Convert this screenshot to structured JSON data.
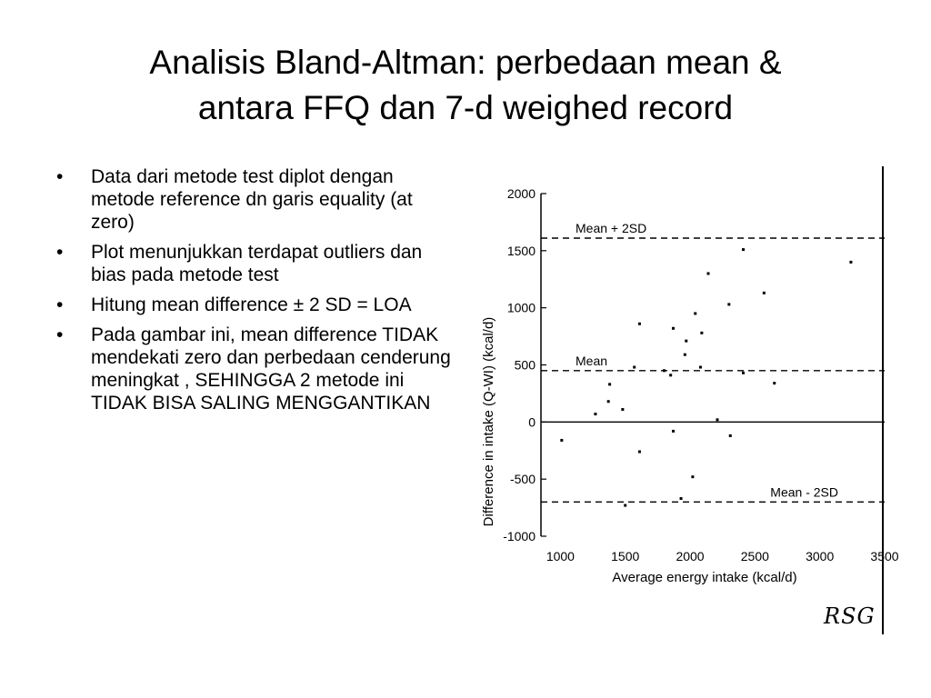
{
  "slide": {
    "title_line1": "Analisis Bland-Altman: perbedaan mean &",
    "title_line2": "antara FFQ dan 7-d weighed record",
    "bullets": [
      "Data dari metode test diplot dengan metode reference dn garis equality (at zero)",
      "Plot menunjukkan terdapat outliers dan bias pada metode test",
      "Hitung mean difference ± 2 SD = LOA",
      "Pada gambar ini, mean difference TIDAK mendekati zero dan perbedaan cenderung meningkat , SEHINGGA 2 metode ini TIDAK BISA SALING MENGGANTIKAN"
    ],
    "bullet_symbol": "•",
    "signature": "RSG"
  },
  "chart_data": {
    "type": "scatter",
    "xlabel": "Average energy intake (kcal/d)",
    "ylabel": "Difference in intake (Q-WI) (kcal/d)",
    "xlim": [
      850,
      3500
    ],
    "ylim": [
      -1000,
      2000
    ],
    "xticks": [
      1000,
      1500,
      2000,
      2500,
      3000,
      3500
    ],
    "yticks": [
      -1000,
      -500,
      0,
      500,
      1000,
      1500,
      2000
    ],
    "grid": false,
    "reference_lines": [
      {
        "label": "Mean + 2SD",
        "y": 1610,
        "style": "dashed"
      },
      {
        "label": "Mean",
        "y": 450,
        "style": "dashed"
      },
      {
        "label": "",
        "y": 0,
        "style": "solid"
      },
      {
        "label": "Mean - 2SD",
        "y": -700,
        "style": "dashed"
      }
    ],
    "points": [
      [
        1010,
        -160
      ],
      [
        1270,
        70
      ],
      [
        1370,
        180
      ],
      [
        1380,
        330
      ],
      [
        1480,
        110
      ],
      [
        1500,
        -730
      ],
      [
        1570,
        480
      ],
      [
        1610,
        860
      ],
      [
        1610,
        -260
      ],
      [
        1800,
        450
      ],
      [
        1850,
        410
      ],
      [
        1870,
        820
      ],
      [
        1870,
        -80
      ],
      [
        1930,
        -670
      ],
      [
        1960,
        590
      ],
      [
        1970,
        710
      ],
      [
        2020,
        -480
      ],
      [
        2040,
        950
      ],
      [
        2080,
        480
      ],
      [
        2090,
        780
      ],
      [
        2140,
        1300
      ],
      [
        2210,
        20
      ],
      [
        2300,
        1030
      ],
      [
        2310,
        -120
      ],
      [
        2410,
        1510
      ],
      [
        2410,
        430
      ],
      [
        2570,
        1130
      ],
      [
        2650,
        340
      ],
      [
        3240,
        1400
      ]
    ]
  }
}
